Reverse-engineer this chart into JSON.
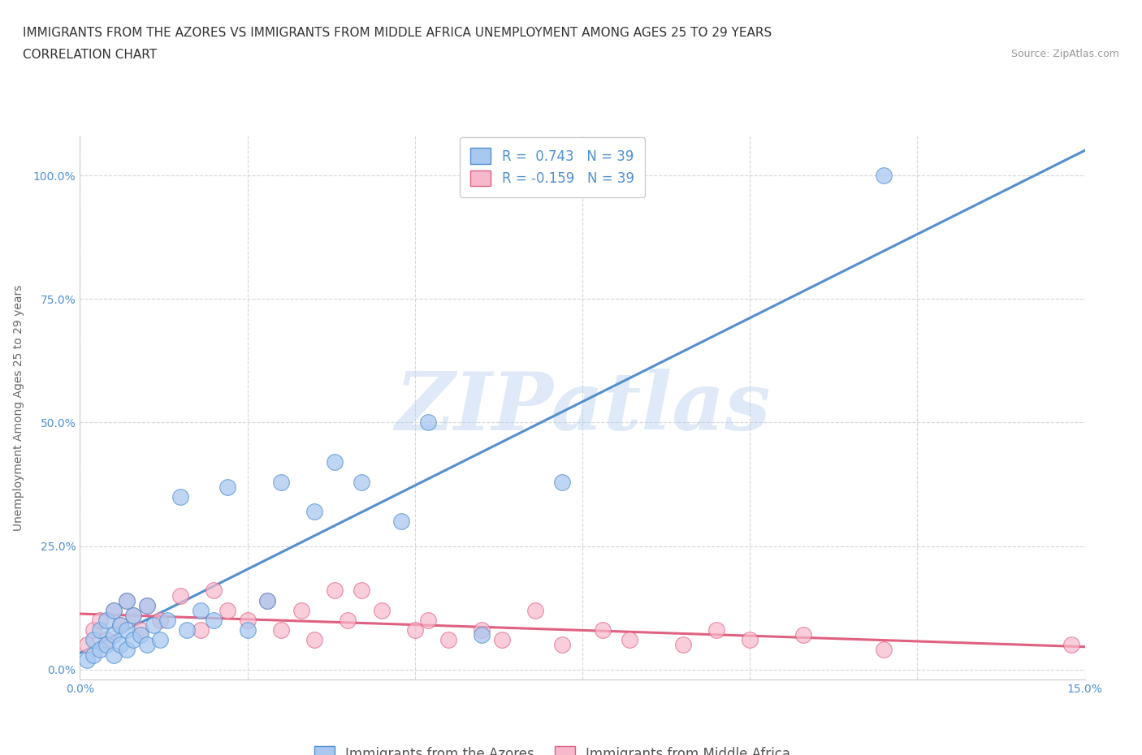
{
  "title_line1": "IMMIGRANTS FROM THE AZORES VS IMMIGRANTS FROM MIDDLE AFRICA UNEMPLOYMENT AMONG AGES 25 TO 29 YEARS",
  "title_line2": "CORRELATION CHART",
  "source_text": "Source: ZipAtlas.com",
  "ylabel": "Unemployment Among Ages 25 to 29 years",
  "xlim": [
    0.0,
    0.15
  ],
  "ylim": [
    -0.02,
    1.08
  ],
  "xticks": [
    0.0,
    0.025,
    0.05,
    0.075,
    0.1,
    0.125,
    0.15
  ],
  "xtick_labels": [
    "0.0%",
    "",
    "",
    "",
    "",
    "",
    "15.0%"
  ],
  "ytick_labels": [
    "0.0%",
    "25.0%",
    "50.0%",
    "75.0%",
    "100.0%"
  ],
  "yticks": [
    0.0,
    0.25,
    0.5,
    0.75,
    1.0
  ],
  "r_azores": 0.743,
  "n_azores": 39,
  "r_africa": -0.159,
  "n_africa": 39,
  "color_azores": "#a8c8f0",
  "color_africa": "#f8b8cc",
  "line_color_azores": "#5090d0",
  "line_color_africa": "#e06080",
  "watermark": "ZIPatlas",
  "legend_label_azores": "Immigrants from the Azores",
  "legend_label_africa": "Immigrants from Middle Africa",
  "azores_x": [
    0.001,
    0.002,
    0.002,
    0.003,
    0.003,
    0.004,
    0.004,
    0.005,
    0.005,
    0.005,
    0.006,
    0.006,
    0.007,
    0.007,
    0.007,
    0.008,
    0.008,
    0.009,
    0.01,
    0.01,
    0.011,
    0.012,
    0.013,
    0.015,
    0.016,
    0.018,
    0.02,
    0.022,
    0.025,
    0.028,
    0.03,
    0.035,
    0.038,
    0.042,
    0.048,
    0.052,
    0.06,
    0.072,
    0.12
  ],
  "azores_y": [
    0.02,
    0.03,
    0.06,
    0.04,
    0.08,
    0.05,
    0.1,
    0.03,
    0.07,
    0.12,
    0.05,
    0.09,
    0.04,
    0.08,
    0.14,
    0.06,
    0.11,
    0.07,
    0.05,
    0.13,
    0.09,
    0.06,
    0.1,
    0.35,
    0.08,
    0.12,
    0.1,
    0.37,
    0.08,
    0.14,
    0.38,
    0.32,
    0.42,
    0.38,
    0.3,
    0.5,
    0.07,
    0.38,
    1.0
  ],
  "africa_x": [
    0.001,
    0.002,
    0.003,
    0.004,
    0.005,
    0.006,
    0.007,
    0.008,
    0.009,
    0.01,
    0.012,
    0.015,
    0.018,
    0.02,
    0.022,
    0.025,
    0.028,
    0.03,
    0.033,
    0.035,
    0.038,
    0.04,
    0.042,
    0.045,
    0.05,
    0.052,
    0.055,
    0.06,
    0.063,
    0.068,
    0.072,
    0.078,
    0.082,
    0.09,
    0.095,
    0.1,
    0.108,
    0.12,
    0.148
  ],
  "africa_y": [
    0.05,
    0.08,
    0.1,
    0.06,
    0.12,
    0.09,
    0.14,
    0.11,
    0.08,
    0.13,
    0.1,
    0.15,
    0.08,
    0.16,
    0.12,
    0.1,
    0.14,
    0.08,
    0.12,
    0.06,
    0.16,
    0.1,
    0.16,
    0.12,
    0.08,
    0.1,
    0.06,
    0.08,
    0.06,
    0.12,
    0.05,
    0.08,
    0.06,
    0.05,
    0.08,
    0.06,
    0.07,
    0.04,
    0.05
  ],
  "grid_color": "#cccccc",
  "bg_color": "#ffffff",
  "title_fontsize": 11,
  "axis_label_fontsize": 10,
  "tick_fontsize": 10,
  "legend_fontsize": 12
}
